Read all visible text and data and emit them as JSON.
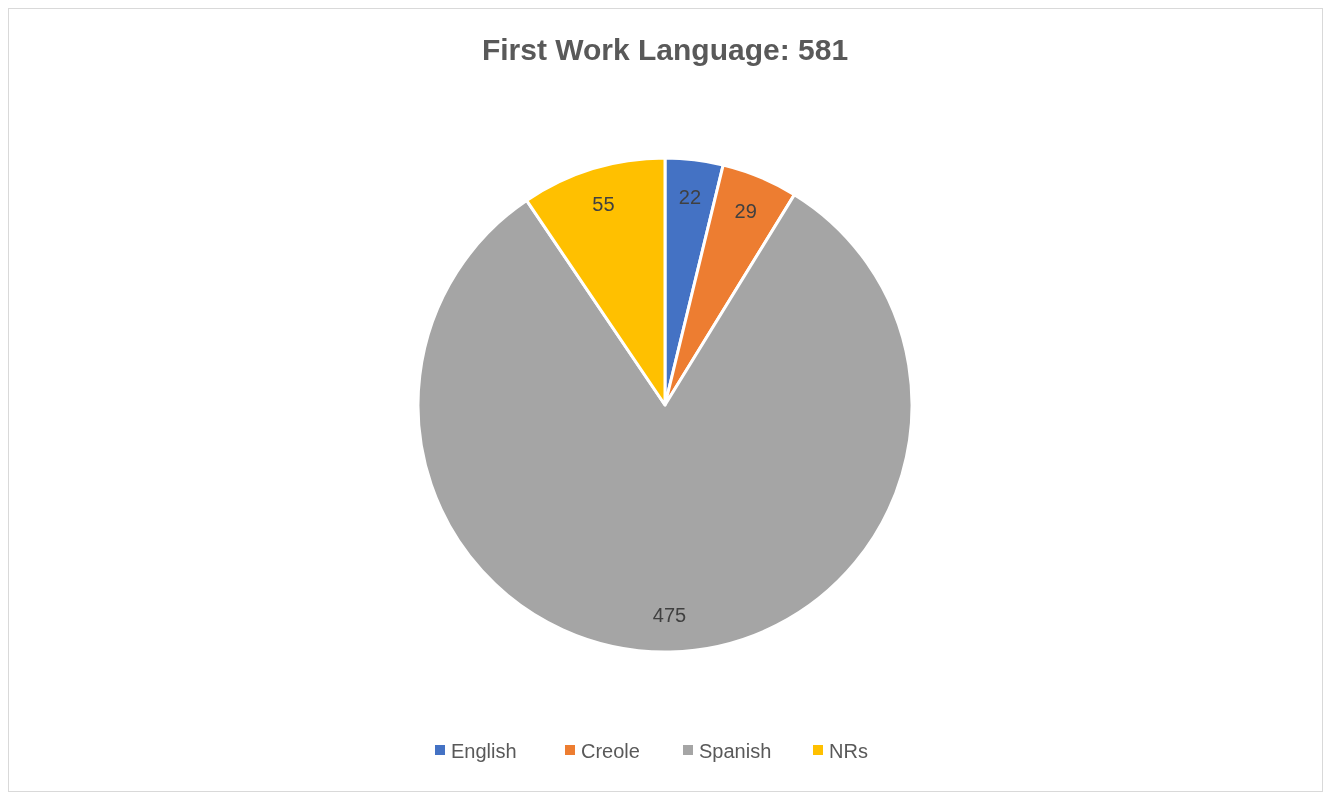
{
  "chart_data": {
    "type": "pie",
    "title": "First Work Language: 581",
    "categories": [
      "English",
      "Creole",
      "Spanish",
      "NRs"
    ],
    "values": [
      22,
      29,
      475,
      55
    ],
    "colors": [
      "#4472c4",
      "#ed7d31",
      "#a5a5a5",
      "#ffc000"
    ],
    "data_labels": true,
    "legend": "bottom"
  }
}
